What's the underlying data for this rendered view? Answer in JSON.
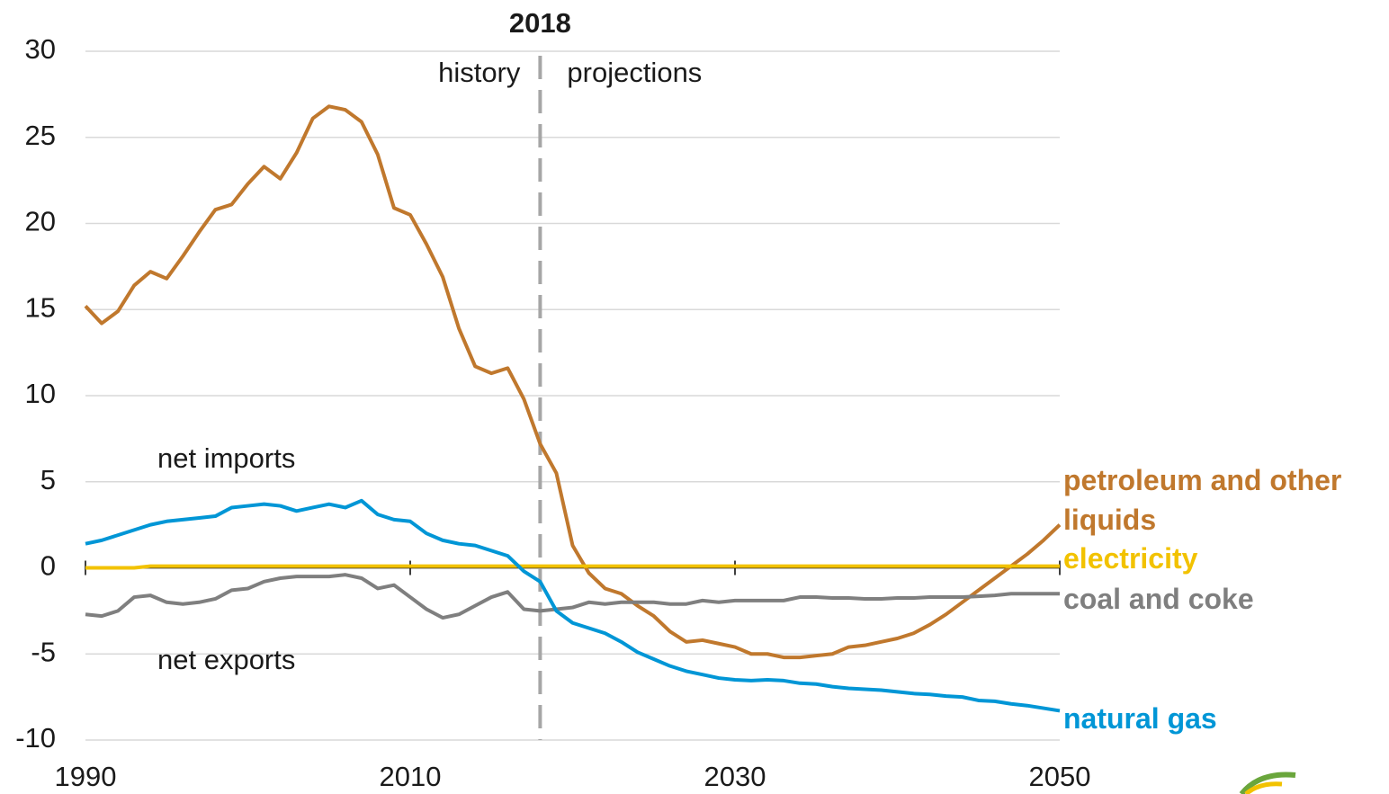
{
  "chart_data": {
    "type": "line",
    "x": [
      1990,
      1991,
      1992,
      1993,
      1994,
      1995,
      1996,
      1997,
      1998,
      1999,
      2000,
      2001,
      2002,
      2003,
      2004,
      2005,
      2006,
      2007,
      2008,
      2009,
      2010,
      2011,
      2012,
      2013,
      2014,
      2015,
      2016,
      2017,
      2018,
      2019,
      2020,
      2021,
      2022,
      2023,
      2024,
      2025,
      2026,
      2027,
      2028,
      2029,
      2030,
      2031,
      2032,
      2033,
      2034,
      2035,
      2036,
      2037,
      2038,
      2039,
      2040,
      2041,
      2042,
      2043,
      2044,
      2045,
      2046,
      2047,
      2048,
      2049,
      2050
    ],
    "xlim": [
      1990,
      2050
    ],
    "xticks": [
      1990,
      2010,
      2030,
      2050
    ],
    "ylim": [
      -10,
      30
    ],
    "yticks": [
      -10,
      -5,
      0,
      5,
      10,
      15,
      20,
      25,
      30
    ],
    "grid": true,
    "divider": 2018,
    "annotations": [
      "history",
      "projections",
      "net imports",
      "net exports"
    ],
    "series": [
      {
        "name": "petroleum and other liquids",
        "color": "#c0782d",
        "values": [
          15.2,
          14.2,
          14.9,
          16.4,
          17.2,
          16.8,
          18.1,
          19.5,
          20.8,
          21.1,
          22.3,
          23.3,
          22.6,
          24.1,
          26.1,
          26.8,
          26.6,
          25.9,
          24.0,
          20.9,
          20.5,
          18.8,
          16.9,
          13.9,
          11.7,
          11.3,
          11.6,
          9.8,
          7.2,
          5.5,
          1.3,
          -0.3,
          -1.2,
          -1.5,
          -2.2,
          -2.8,
          -3.7,
          -4.3,
          -4.2,
          -4.4,
          -4.6,
          -5.0,
          -5.0,
          -5.2,
          -5.2,
          -5.1,
          -5.0,
          -4.6,
          -4.5,
          -4.3,
          -4.1,
          -3.8,
          -3.3,
          -2.7,
          -2.0,
          -1.3,
          -0.6,
          0.1,
          0.8,
          1.6,
          2.5
        ]
      },
      {
        "name": "electricity",
        "color": "#f2c200",
        "values": [
          0.0,
          0.0,
          0.0,
          0.0,
          0.1,
          0.1,
          0.1,
          0.1,
          0.1,
          0.1,
          0.1,
          0.1,
          0.1,
          0.1,
          0.1,
          0.1,
          0.1,
          0.1,
          0.1,
          0.1,
          0.1,
          0.1,
          0.1,
          0.1,
          0.1,
          0.1,
          0.1,
          0.1,
          0.1,
          0.1,
          0.1,
          0.1,
          0.1,
          0.1,
          0.1,
          0.1,
          0.1,
          0.1,
          0.1,
          0.1,
          0.1,
          0.1,
          0.1,
          0.1,
          0.1,
          0.1,
          0.1,
          0.1,
          0.1,
          0.1,
          0.1,
          0.1,
          0.1,
          0.1,
          0.1,
          0.1,
          0.1,
          0.1,
          0.1,
          0.1,
          0.1
        ]
      },
      {
        "name": "coal and coke",
        "color": "#7f7f7f",
        "values": [
          -2.7,
          -2.8,
          -2.5,
          -1.7,
          -1.6,
          -2.0,
          -2.1,
          -2.0,
          -1.8,
          -1.3,
          -1.2,
          -0.8,
          -0.6,
          -0.5,
          -0.5,
          -0.5,
          -0.4,
          -0.6,
          -1.2,
          -1.0,
          -1.7,
          -2.4,
          -2.9,
          -2.7,
          -2.2,
          -1.7,
          -1.4,
          -2.4,
          -2.5,
          -2.4,
          -2.3,
          -2.0,
          -2.1,
          -2.0,
          -2.0,
          -2.0,
          -2.1,
          -2.1,
          -1.9,
          -2.0,
          -1.9,
          -1.9,
          -1.9,
          -1.9,
          -1.7,
          -1.7,
          -1.75,
          -1.75,
          -1.8,
          -1.8,
          -1.75,
          -1.75,
          -1.7,
          -1.7,
          -1.7,
          -1.65,
          -1.6,
          -1.5,
          -1.5,
          -1.5,
          -1.5
        ]
      },
      {
        "name": "natural gas",
        "color": "#0096d6",
        "values": [
          1.4,
          1.6,
          1.9,
          2.2,
          2.5,
          2.7,
          2.8,
          2.9,
          3.0,
          3.5,
          3.6,
          3.7,
          3.6,
          3.3,
          3.5,
          3.7,
          3.5,
          3.9,
          3.1,
          2.8,
          2.7,
          2.0,
          1.6,
          1.4,
          1.3,
          1.0,
          0.7,
          -0.2,
          -0.8,
          -2.5,
          -3.2,
          -3.5,
          -3.8,
          -4.3,
          -4.9,
          -5.3,
          -5.7,
          -6.0,
          -6.2,
          -6.4,
          -6.5,
          -6.55,
          -6.5,
          -6.55,
          -6.7,
          -6.75,
          -6.9,
          -7.0,
          -7.05,
          -7.1,
          -7.2,
          -7.3,
          -7.35,
          -7.45,
          -7.5,
          -7.7,
          -7.75,
          -7.9,
          -8.0,
          -8.15,
          -8.3
        ]
      }
    ]
  }
}
